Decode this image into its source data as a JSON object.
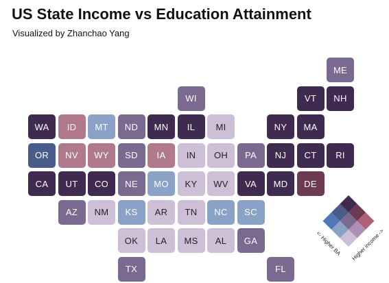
{
  "title": "US State Income vs Education Attainment",
  "subtitle": "Visualized by Zhanchao Yang",
  "colors": {
    "dark_purple": "#3f2a50",
    "mid_purple": "#7a6a90",
    "light_lilac": "#ccbfd6",
    "steel_blue": "#8aa2c6",
    "navy": "#4a5c8c",
    "rose": "#b07a8c",
    "wine": "#6e3a52"
  },
  "legend": {
    "x_label": "Higher income ->",
    "y_label": "<- Higher BA",
    "colors": [
      [
        "#ccbfd6",
        "#ac8fb4",
        "#b0607a"
      ],
      [
        "#8aa2c6",
        "#7a6a90",
        "#6e3a52"
      ],
      [
        "#4f78b8",
        "#4a5c8c",
        "#3f2a50"
      ]
    ]
  },
  "states": [
    {
      "abbr": "ME",
      "color": "#7a6a90",
      "col": 10,
      "row": 0
    },
    {
      "abbr": "WI",
      "color": "#7a6a90",
      "col": 5,
      "row": 1
    },
    {
      "abbr": "VT",
      "color": "#3f2a50",
      "col": 9,
      "row": 1
    },
    {
      "abbr": "NH",
      "color": "#3f2a50",
      "col": 10,
      "row": 1
    },
    {
      "abbr": "WA",
      "color": "#3f2a50",
      "col": 0,
      "row": 2
    },
    {
      "abbr": "ID",
      "color": "#b07a8c",
      "col": 1,
      "row": 2
    },
    {
      "abbr": "MT",
      "color": "#8aa2c6",
      "col": 2,
      "row": 2
    },
    {
      "abbr": "ND",
      "color": "#7a6a90",
      "col": 3,
      "row": 2
    },
    {
      "abbr": "MN",
      "color": "#3f2a50",
      "col": 4,
      "row": 2
    },
    {
      "abbr": "IL",
      "color": "#3f2a50",
      "col": 5,
      "row": 2
    },
    {
      "abbr": "MI",
      "color": "#ccbfd6",
      "col": 6,
      "row": 2
    },
    {
      "abbr": "NY",
      "color": "#3f2a50",
      "col": 8,
      "row": 2
    },
    {
      "abbr": "MA",
      "color": "#3f2a50",
      "col": 9,
      "row": 2
    },
    {
      "abbr": "OR",
      "color": "#4a5c8c",
      "col": 0,
      "row": 3
    },
    {
      "abbr": "NV",
      "color": "#b07a8c",
      "col": 1,
      "row": 3
    },
    {
      "abbr": "WY",
      "color": "#b07a8c",
      "col": 2,
      "row": 3
    },
    {
      "abbr": "SD",
      "color": "#7a6a90",
      "col": 3,
      "row": 3
    },
    {
      "abbr": "IA",
      "color": "#b07a8c",
      "col": 4,
      "row": 3
    },
    {
      "abbr": "IN",
      "color": "#ccbfd6",
      "col": 5,
      "row": 3
    },
    {
      "abbr": "OH",
      "color": "#ccbfd6",
      "col": 6,
      "row": 3
    },
    {
      "abbr": "PA",
      "color": "#7a6a90",
      "col": 7,
      "row": 3
    },
    {
      "abbr": "NJ",
      "color": "#3f2a50",
      "col": 8,
      "row": 3
    },
    {
      "abbr": "CT",
      "color": "#3f2a50",
      "col": 9,
      "row": 3
    },
    {
      "abbr": "RI",
      "color": "#3f2a50",
      "col": 10,
      "row": 3
    },
    {
      "abbr": "CA",
      "color": "#3f2a50",
      "col": 0,
      "row": 4
    },
    {
      "abbr": "UT",
      "color": "#3f2a50",
      "col": 1,
      "row": 4
    },
    {
      "abbr": "CO",
      "color": "#3f2a50",
      "col": 2,
      "row": 4
    },
    {
      "abbr": "NE",
      "color": "#7a6a90",
      "col": 3,
      "row": 4
    },
    {
      "abbr": "MO",
      "color": "#8aa2c6",
      "col": 4,
      "row": 4
    },
    {
      "abbr": "KY",
      "color": "#ccbfd6",
      "col": 5,
      "row": 4
    },
    {
      "abbr": "WV",
      "color": "#ccbfd6",
      "col": 6,
      "row": 4
    },
    {
      "abbr": "VA",
      "color": "#3f2a50",
      "col": 7,
      "row": 4
    },
    {
      "abbr": "MD",
      "color": "#3f2a50",
      "col": 8,
      "row": 4
    },
    {
      "abbr": "DE",
      "color": "#6e3a52",
      "col": 9,
      "row": 4
    },
    {
      "abbr": "AZ",
      "color": "#7a6a90",
      "col": 1,
      "row": 5
    },
    {
      "abbr": "NM",
      "color": "#ccbfd6",
      "col": 2,
      "row": 5
    },
    {
      "abbr": "KS",
      "color": "#8aa2c6",
      "col": 3,
      "row": 5
    },
    {
      "abbr": "AR",
      "color": "#ccbfd6",
      "col": 4,
      "row": 5
    },
    {
      "abbr": "TN",
      "color": "#ccbfd6",
      "col": 5,
      "row": 5
    },
    {
      "abbr": "NC",
      "color": "#8aa2c6",
      "col": 6,
      "row": 5
    },
    {
      "abbr": "SC",
      "color": "#8aa2c6",
      "col": 7,
      "row": 5
    },
    {
      "abbr": "OK",
      "color": "#ccbfd6",
      "col": 3,
      "row": 6
    },
    {
      "abbr": "LA",
      "color": "#ccbfd6",
      "col": 4,
      "row": 6
    },
    {
      "abbr": "MS",
      "color": "#ccbfd6",
      "col": 5,
      "row": 6
    },
    {
      "abbr": "AL",
      "color": "#ccbfd6",
      "col": 6,
      "row": 6
    },
    {
      "abbr": "GA",
      "color": "#7a6a90",
      "col": 7,
      "row": 6
    },
    {
      "abbr": "TX",
      "color": "#7a6a90",
      "col": 3,
      "row": 7
    },
    {
      "abbr": "FL",
      "color": "#7a6a90",
      "col": 8,
      "row": 7
    }
  ]
}
